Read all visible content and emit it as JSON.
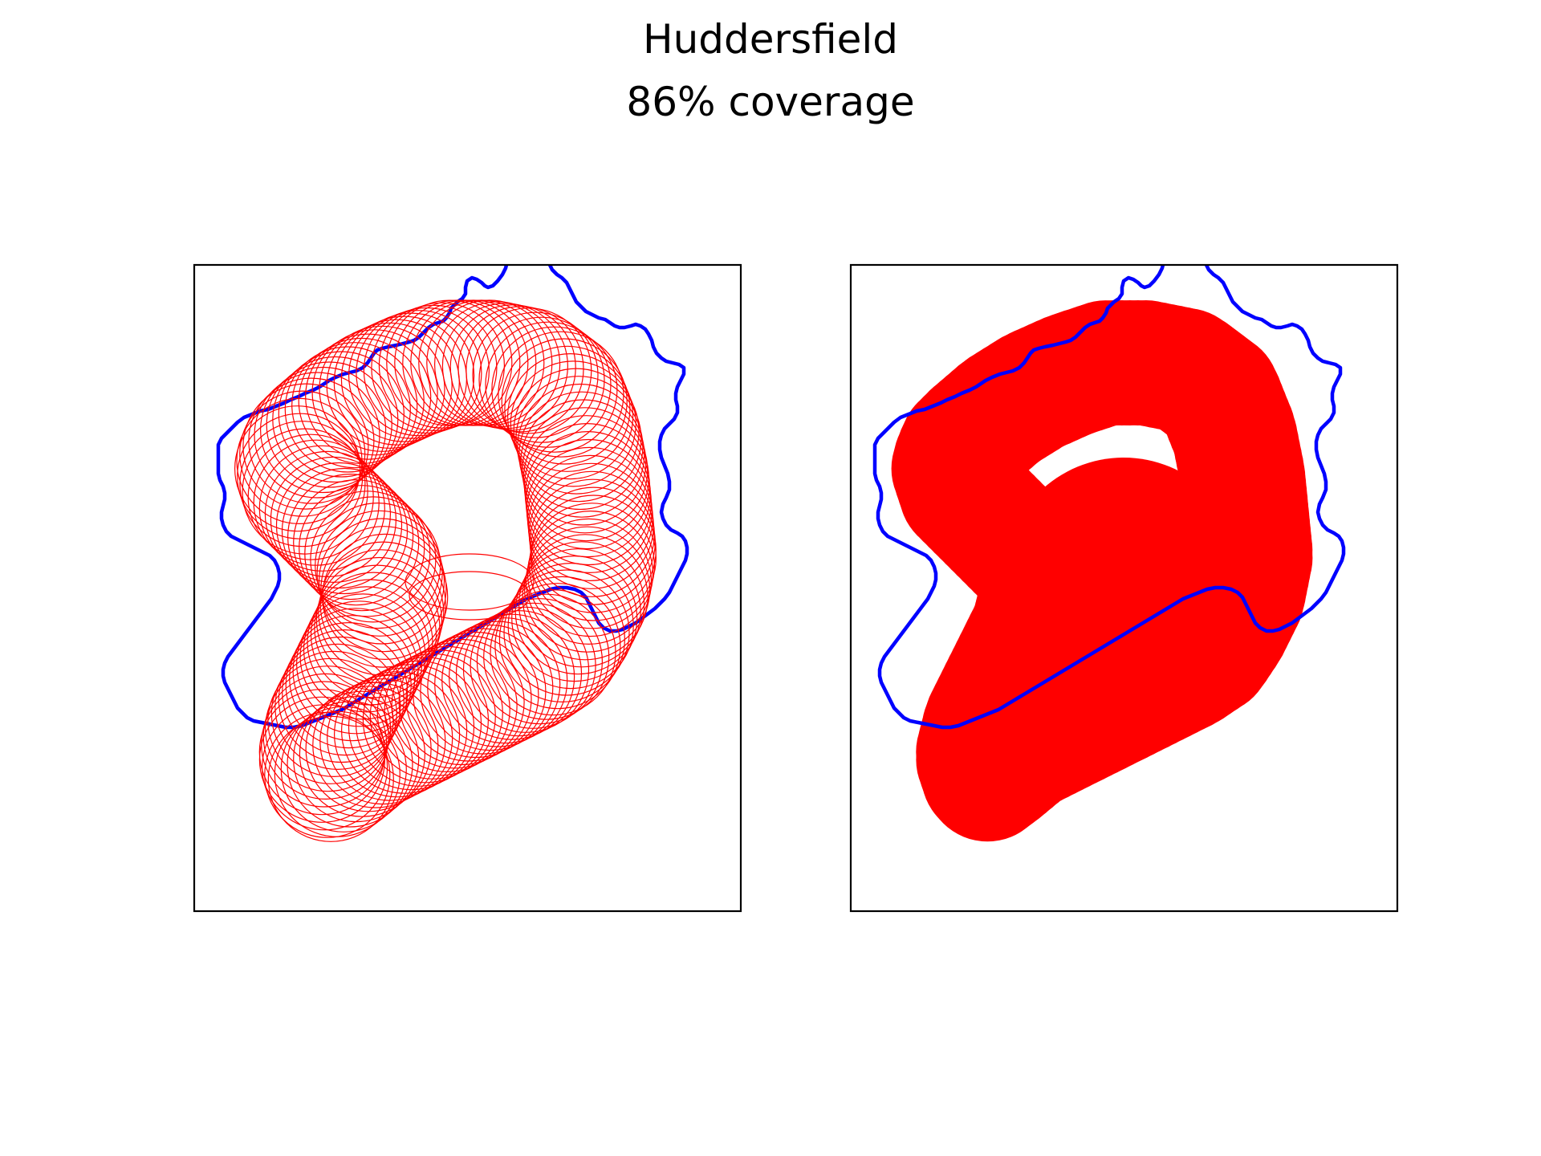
{
  "figure": {
    "title": "Huddersfield",
    "subtitle": "86% coverage"
  },
  "colors": {
    "boundary": "#0000ff",
    "coverage": "#ff0000",
    "frame": "#000000",
    "background": "#ffffff"
  },
  "panels": [
    {
      "name": "coverage-circles-panel",
      "style": "outlined circles"
    },
    {
      "name": "coverage-union-panel",
      "style": "filled union"
    }
  ]
}
